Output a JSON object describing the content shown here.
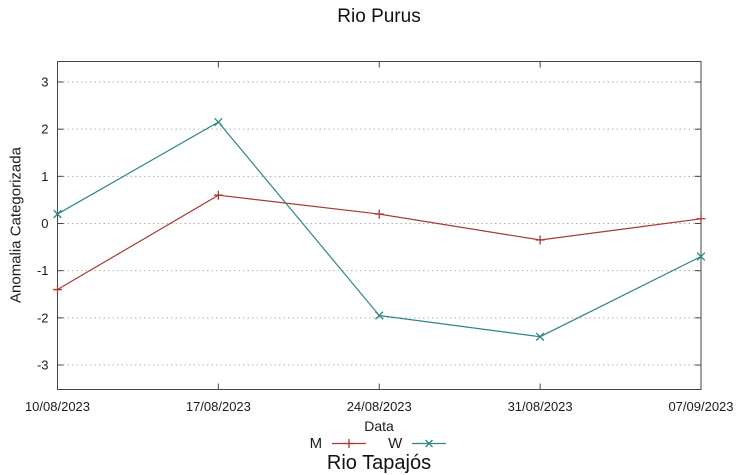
{
  "title": "Rio Purus",
  "chart_data": {
    "type": "line",
    "title": "Rio Purus",
    "xlabel": "Data",
    "ylabel": "Anomalia Categorizada",
    "categories": [
      "10/08/2023",
      "17/08/2023",
      "24/08/2023",
      "31/08/2023",
      "07/09/2023"
    ],
    "yticks": [
      3,
      2,
      1,
      0,
      -1,
      -2,
      -3
    ],
    "ylim": [
      -3.5,
      3.5
    ],
    "grid": "horizontal-dotted",
    "legend_position": "bottom-center",
    "series": [
      {
        "name": "M",
        "marker": "plus",
        "color": "#a63933",
        "values": [
          -1.4,
          0.6,
          0.2,
          -0.35,
          0.1
        ]
      },
      {
        "name": "W",
        "marker": "cross",
        "color": "#2d8686",
        "values": [
          0.2,
          2.15,
          -1.95,
          -2.4,
          -0.7
        ]
      }
    ]
  },
  "next_chart_partial_title": "Rio Tapajós",
  "colors": {
    "axis": "#454545",
    "grid": "#b0b0b0",
    "text": "#1c1c1c"
  }
}
